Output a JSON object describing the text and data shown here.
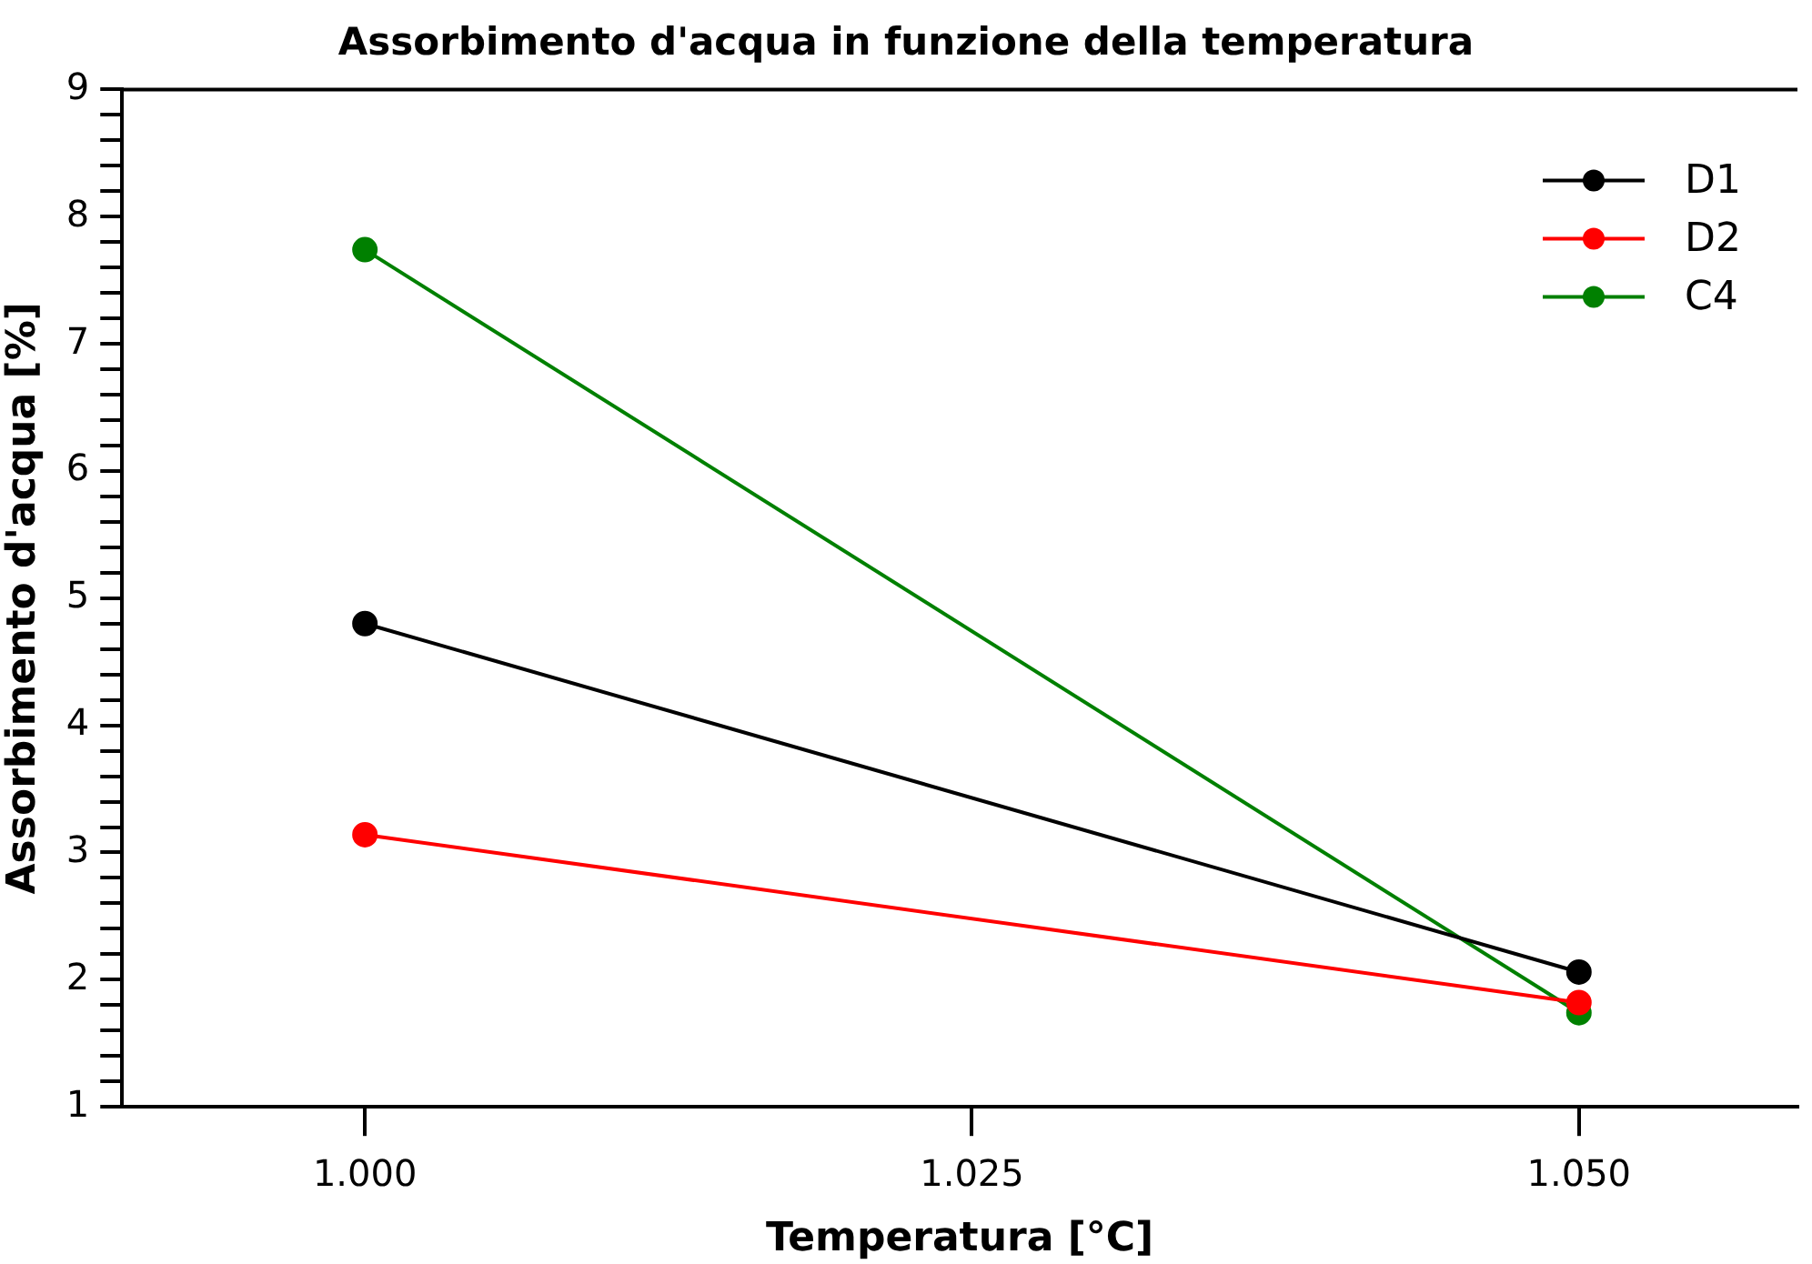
{
  "chart_data": {
    "type": "line",
    "title": "Assorbimento d'acqua in funzione della temperatura",
    "xlabel": "Temperatura [°C]",
    "ylabel": "Assorbimento d'acqua [%]",
    "x": [
      1.0,
      1.05
    ],
    "series": [
      {
        "name": "D1",
        "color": "#000000",
        "values": [
          4.8,
          2.06
        ]
      },
      {
        "name": "D2",
        "color": "#ff0000",
        "values": [
          3.14,
          1.82
        ]
      },
      {
        "name": "C4",
        "color": "#008000",
        "values": [
          7.74,
          1.74
        ]
      }
    ],
    "xlim": [
      0.99,
      1.059
    ],
    "xticks": [
      {
        "value": 1.0,
        "label": "1.000"
      },
      {
        "value": 1.025,
        "label": "1.025"
      },
      {
        "value": 1.05,
        "label": "1.050"
      }
    ],
    "ylim": [
      1,
      9
    ],
    "yticks": [
      1,
      {
        "value": 1.2,
        "label": null
      },
      {
        "value": 1.4,
        "label": null
      },
      {
        "value": 1.6,
        "label": null
      },
      {
        "value": 1.8,
        "label": null
      },
      2,
      {
        "value": 2.2,
        "label": null
      },
      {
        "value": 2.4,
        "label": null
      },
      {
        "value": 2.6,
        "label": null
      },
      {
        "value": 2.8,
        "label": null
      },
      3,
      {
        "value": 3.2,
        "label": null
      },
      {
        "value": 3.4,
        "label": null
      },
      {
        "value": 3.6,
        "label": null
      },
      {
        "value": 3.8,
        "label": null
      },
      4,
      {
        "value": 4.2,
        "label": null
      },
      {
        "value": 4.4,
        "label": null
      },
      {
        "value": 4.6,
        "label": null
      },
      {
        "value": 4.8,
        "label": null
      },
      5,
      {
        "value": 5.2,
        "label": null
      },
      {
        "value": 5.4,
        "label": null
      },
      {
        "value": 5.6,
        "label": null
      },
      {
        "value": 5.8,
        "label": null
      },
      6,
      {
        "value": 6.2,
        "label": null
      },
      {
        "value": 6.4,
        "label": null
      },
      {
        "value": 6.6,
        "label": null
      },
      {
        "value": 6.8,
        "label": null
      },
      7,
      {
        "value": 7.2,
        "label": null
      },
      {
        "value": 7.4,
        "label": null
      },
      {
        "value": 7.6,
        "label": null
      },
      {
        "value": 7.8,
        "label": null
      },
      8,
      {
        "value": 8.2,
        "label": null
      },
      {
        "value": 8.4,
        "label": null
      },
      {
        "value": 8.6,
        "label": null
      },
      {
        "value": 8.8,
        "label": null
      },
      9
    ],
    "grid": false,
    "legend": "top right",
    "marker": "circle",
    "line_style": "solid"
  }
}
